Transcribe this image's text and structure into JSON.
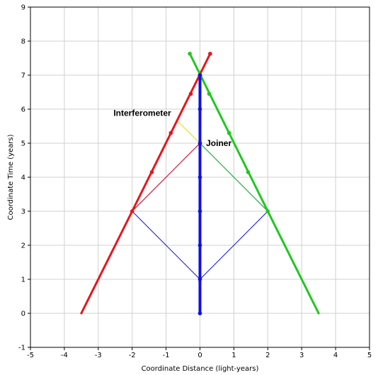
{
  "chart_data": {
    "type": "line",
    "xlabel": "Coordinate Distance (light-years)",
    "ylabel": "Coordinate Time (years)",
    "xlim": [
      -5,
      5
    ],
    "ylim": [
      -1,
      9
    ],
    "xticks": [
      -5,
      -4,
      -3,
      -2,
      -1,
      0,
      1,
      2,
      3,
      4,
      5
    ],
    "yticks": [
      -1,
      0,
      1,
      2,
      3,
      4,
      5,
      6,
      7,
      8,
      9
    ],
    "grid": true,
    "colors": {
      "red": "#e8141c",
      "green": "#1ec81e",
      "blue": "#1010e0",
      "yellow": "#e0e000",
      "grid": "#d0d0d0",
      "axis": "#000000"
    },
    "series": [
      {
        "color": "red",
        "width": 3,
        "x": [
          -3.5,
          -2.0,
          0.3
        ],
        "y": [
          0,
          3.0,
          7.63
        ],
        "markers": [
          [
            -2.0,
            3.0
          ],
          [
            -1.42,
            4.15
          ],
          [
            -0.86,
            5.3
          ],
          [
            -0.27,
            6.45
          ],
          [
            0.0,
            7.0
          ],
          [
            0.3,
            7.63
          ]
        ]
      },
      {
        "color": "green",
        "width": 3,
        "x": [
          3.5,
          2.0,
          -0.3
        ],
        "y": [
          0,
          3.0,
          7.63
        ],
        "markers": [
          [
            2.0,
            3.0
          ],
          [
            1.42,
            4.15
          ],
          [
            0.86,
            5.3
          ],
          [
            0.27,
            6.45
          ],
          [
            0.0,
            7.0
          ],
          [
            -0.3,
            7.63
          ]
        ]
      },
      {
        "color": "blue",
        "width": 4,
        "x": [
          0,
          0
        ],
        "y": [
          0,
          7
        ],
        "markers": [
          [
            0,
            0
          ],
          [
            0,
            1
          ],
          [
            0,
            2
          ],
          [
            0,
            3
          ],
          [
            0,
            4
          ],
          [
            0,
            5
          ],
          [
            0,
            6
          ],
          [
            0,
            7
          ]
        ]
      },
      {
        "color": "blue",
        "width": 1,
        "x": [
          -2,
          0,
          2
        ],
        "y": [
          3,
          1,
          3
        ],
        "markers": []
      },
      {
        "color": "blue",
        "width": 1,
        "x": [
          -2,
          0,
          2
        ],
        "y": [
          3,
          5,
          3
        ],
        "markers": []
      },
      {
        "color": "red",
        "width": 1,
        "x": [
          -2,
          0
        ],
        "y": [
          3,
          5
        ],
        "markers": []
      },
      {
        "color": "green",
        "width": 1,
        "x": [
          2,
          0
        ],
        "y": [
          3,
          5
        ],
        "markers": []
      },
      {
        "color": "yellow",
        "width": 1,
        "x": [
          -0.68,
          0
        ],
        "y": [
          5.67,
          5
        ],
        "markers": []
      }
    ],
    "annotations": [
      {
        "text": "Interferometer",
        "x": -2.55,
        "y": 5.8
      },
      {
        "text": "Joiner",
        "x": 0.18,
        "y": 4.92
      }
    ]
  }
}
